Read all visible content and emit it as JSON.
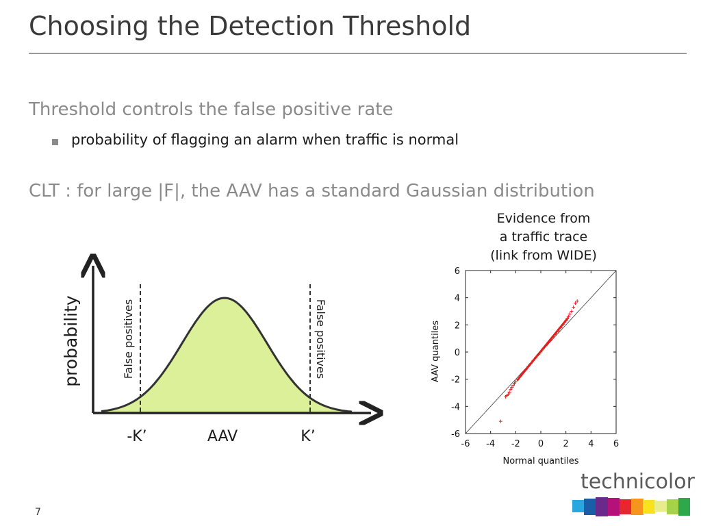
{
  "slide": {
    "title": "Choosing the Detection Threshold",
    "heading1": "Threshold controls the false positive rate",
    "bullet1": "probability of flagging an alarm when traffic is normal",
    "heading2": "CLT : for large |F|, the AAV has a standard Gaussian distribution",
    "page_number": "7"
  },
  "gaussian_figure": {
    "ylabel": "probability",
    "left_region_label": "False positives",
    "right_region_label": "False positives",
    "tick_left": "-K’",
    "tick_center": "AAV",
    "tick_right": "K’",
    "fill_color": "#dcf09a"
  },
  "evidence": {
    "line1": "Evidence from",
    "line2": "a traffic trace",
    "line3": "(link from WIDE)"
  },
  "chart_data": {
    "type": "scatter",
    "xlabel": "Normal quantiles",
    "ylabel": "AAV quantiles",
    "xlim": [
      -6,
      6
    ],
    "ylim": [
      -6,
      6
    ],
    "xticks": [
      "-6",
      "-4",
      "-2",
      "0",
      "2",
      "4",
      "6"
    ],
    "yticks": [
      "-6",
      "-4",
      "-2",
      "0",
      "2",
      "4",
      "6"
    ],
    "reference_line": "y = x",
    "marker": "+",
    "marker_color": "#e02020",
    "points": [
      [
        -3.2,
        -5.1
      ],
      [
        -2.8,
        -3.3
      ],
      [
        -2.7,
        -3.2
      ],
      [
        -2.6,
        -3.1
      ],
      [
        -2.5,
        -2.95
      ],
      [
        -2.4,
        -2.75
      ],
      [
        -2.3,
        -2.6
      ],
      [
        -2.2,
        -2.45
      ],
      [
        -2.1,
        -2.3
      ],
      [
        -2.0,
        -2.2
      ],
      [
        -1.8,
        -2.0
      ],
      [
        -1.6,
        -1.75
      ],
      [
        -1.4,
        -1.5
      ],
      [
        -1.2,
        -1.3
      ],
      [
        -1.0,
        -1.05
      ],
      [
        -0.8,
        -0.85
      ],
      [
        -0.6,
        -0.62
      ],
      [
        -0.4,
        -0.4
      ],
      [
        -0.2,
        -0.18
      ],
      [
        0.0,
        0.02
      ],
      [
        0.2,
        0.24
      ],
      [
        0.4,
        0.46
      ],
      [
        0.6,
        0.68
      ],
      [
        0.8,
        0.9
      ],
      [
        1.0,
        1.12
      ],
      [
        1.2,
        1.34
      ],
      [
        1.4,
        1.56
      ],
      [
        1.6,
        1.8
      ],
      [
        1.8,
        2.05
      ],
      [
        2.0,
        2.3
      ],
      [
        2.1,
        2.45
      ],
      [
        2.2,
        2.6
      ],
      [
        2.3,
        2.8
      ],
      [
        2.45,
        3.0
      ],
      [
        2.6,
        3.3
      ],
      [
        2.75,
        3.6
      ],
      [
        2.9,
        3.75
      ]
    ]
  },
  "logo": {
    "text": "technicolor",
    "colors": [
      "#29a8e0",
      "#1b5ea8",
      "#6a2a8c",
      "#b4127a",
      "#e8262e",
      "#f7941d",
      "#f9e11e",
      "#e8ec8a",
      "#a6d24a",
      "#2ea84a"
    ]
  }
}
